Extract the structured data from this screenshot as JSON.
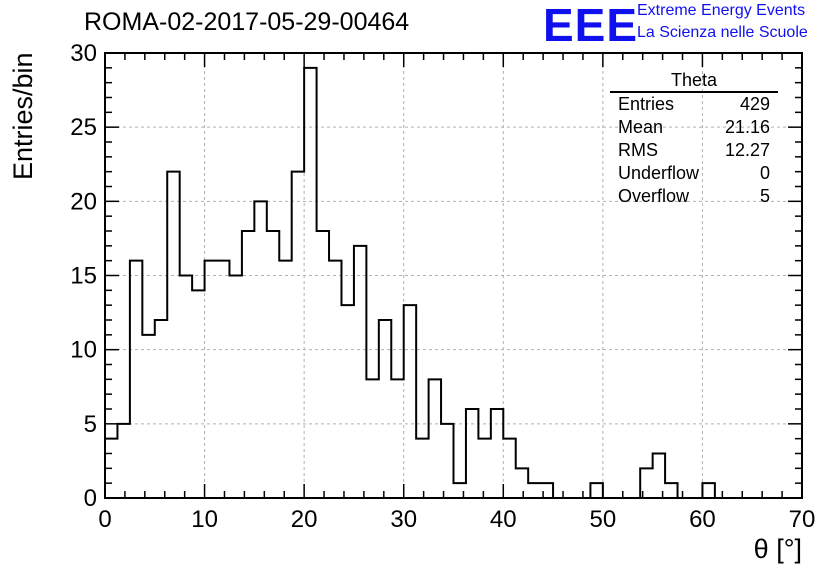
{
  "header": {
    "run_title": "ROMA-02-2017-05-29-00464",
    "logo_text": "EEE",
    "tagline_1": "Extreme Energy Events",
    "tagline_2": "La Scienza nelle Scuole"
  },
  "stats": {
    "title": "Theta",
    "rows": [
      {
        "label": "Entries",
        "value": "429"
      },
      {
        "label": "Mean",
        "value": "21.16"
      },
      {
        "label": "RMS",
        "value": "12.27"
      },
      {
        "label": "Underflow",
        "value": "0"
      },
      {
        "label": "Overflow",
        "value": "5"
      }
    ]
  },
  "chart_data": {
    "type": "histogram",
    "xlabel": "θ [°]",
    "ylabel": "Entries/bin",
    "xlim": [
      0,
      70
    ],
    "ylim": [
      0,
      30
    ],
    "bin_width": 1.25,
    "x_ticks": [
      "0",
      "10",
      "20",
      "30",
      "40",
      "50",
      "60",
      "70"
    ],
    "y_ticks": [
      "0",
      "5",
      "10",
      "15",
      "20",
      "25",
      "30"
    ],
    "grid": true,
    "counts": [
      4,
      5,
      16,
      11,
      12,
      22,
      15,
      14,
      16,
      16,
      15,
      18,
      20,
      18,
      16,
      22,
      29,
      18,
      16,
      13,
      17,
      8,
      12,
      8,
      13,
      4,
      8,
      5,
      1,
      6,
      4,
      6,
      4,
      2,
      1,
      1,
      0,
      0,
      0,
      1,
      0,
      0,
      0,
      2,
      3,
      1,
      0,
      0,
      1,
      0,
      0,
      0,
      0,
      0,
      0,
      0
    ]
  }
}
